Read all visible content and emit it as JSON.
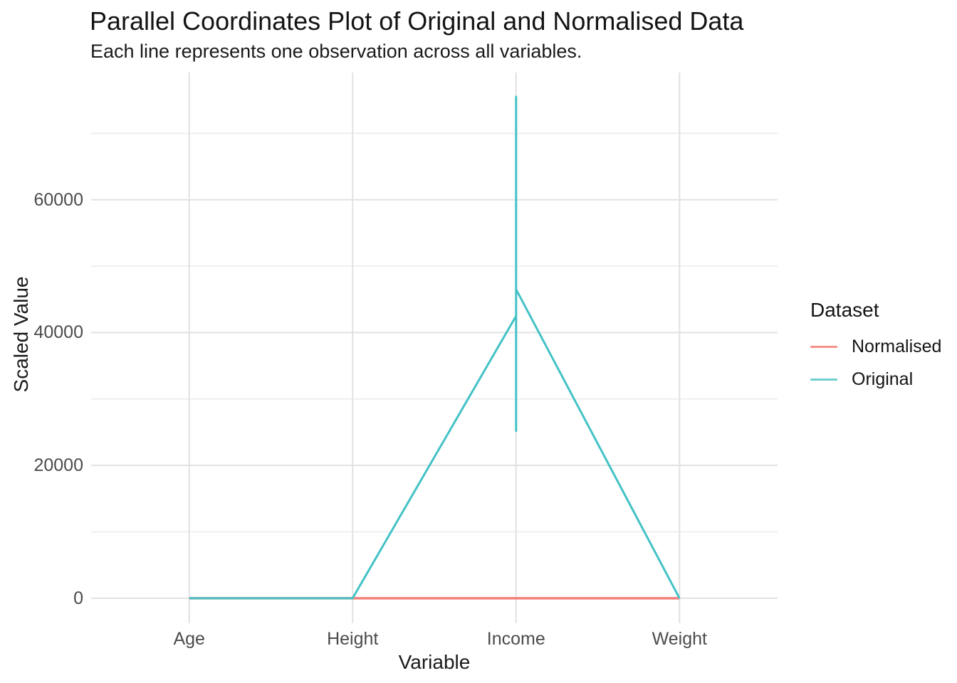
{
  "title": "Parallel Coordinates Plot of Original and Normalised Data",
  "subtitle": "Each line represents one observation across all variables.",
  "x_axis": {
    "label": "Variable",
    "categories": [
      "Age",
      "Height",
      "Income",
      "Weight"
    ]
  },
  "y_axis": {
    "label": "Scaled Value",
    "tick_labels": [
      "0",
      "20000",
      "40000",
      "60000"
    ],
    "ticks": [
      0,
      20000,
      40000,
      60000
    ],
    "minor_ticks": [
      10000,
      30000,
      50000,
      70000
    ],
    "range": [
      -3760,
      79140
    ]
  },
  "legend": {
    "title": "Dataset",
    "position": "right",
    "items": [
      {
        "label": "Normalised",
        "swatch_color": "#F5908A"
      },
      {
        "label": "Original",
        "swatch_color": "#6FCFCF"
      }
    ]
  },
  "colors": {
    "normalised_line": "#F4807A",
    "original_line": "#44C2C6",
    "grid_major": "#E2E2E2",
    "grid_minor": "#EFEFEF",
    "axis_text": "#4b4b4b",
    "title_text": "#141414"
  },
  "chart_data": {
    "type": "line",
    "variant": "parallel-coordinates",
    "title": "Parallel Coordinates Plot of Original and Normalised Data",
    "subtitle": "Each line represents one observation across all variables.",
    "xlabel": "Variable",
    "ylabel": "Scaled Value",
    "categories": [
      "Age",
      "Height",
      "Income",
      "Weight"
    ],
    "ylim": [
      -3760,
      79140
    ],
    "grid": true,
    "legend_position": "right",
    "values_are_approx": true,
    "series": [
      {
        "name": "Normalised",
        "color": "#F4807A",
        "stroke_width": 3.5,
        "points": [
          [
            "Age",
            0
          ],
          [
            "Height",
            0
          ],
          [
            "Income",
            0
          ],
          [
            "Weight",
            0
          ]
        ],
        "note": "normalised values lie in 0-1, rendered flat at ~0 on this scale"
      },
      {
        "name": "Original",
        "color": "#44C2C6",
        "stroke_width": 3,
        "points": [
          [
            "Age",
            0
          ],
          [
            "Height",
            0
          ],
          [
            "Income",
            42500
          ],
          [
            "Income",
            75500
          ],
          [
            "Income",
            25200
          ],
          [
            "Income",
            46500
          ],
          [
            "Weight",
            0
          ]
        ],
        "income_span": [
          25200,
          75500
        ],
        "note": "Age/Height/Weight values are near 0 at this scale; Income values span 25200-75500 forming a vertical line at the Income axis"
      }
    ]
  }
}
